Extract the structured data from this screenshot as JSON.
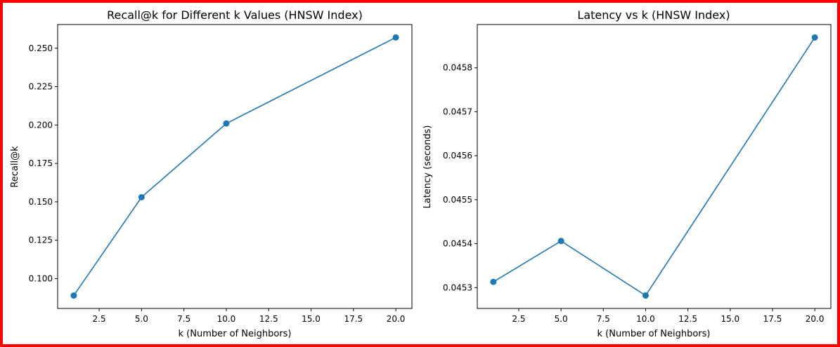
{
  "frame_color": "#ff0000",
  "chart_data": [
    {
      "type": "line",
      "title": "Recall@k for Different k Values (HNSW Index)",
      "xlabel": "k (Number of Neighbors)",
      "ylabel": "Recall@k",
      "x": [
        1,
        5,
        10,
        20
      ],
      "series": [
        {
          "values": [
            0.089,
            0.153,
            0.201,
            0.257
          ],
          "color": "#1f77b4",
          "marker": "circle"
        }
      ],
      "xlim": [
        0.05,
        20.95
      ],
      "ylim": [
        0.0806,
        0.2654
      ],
      "xticks": [
        2.5,
        5.0,
        7.5,
        10.0,
        12.5,
        15.0,
        17.5,
        20.0
      ],
      "xtick_labels": [
        "2.5",
        "5.0",
        "7.5",
        "10.0",
        "12.5",
        "15.0",
        "17.5",
        "20.0"
      ],
      "yticks": [
        0.1,
        0.125,
        0.15,
        0.175,
        0.2,
        0.225,
        0.25
      ],
      "ytick_labels": [
        "0.100",
        "0.125",
        "0.150",
        "0.175",
        "0.200",
        "0.225",
        "0.250"
      ],
      "grid": false,
      "legend": "none"
    },
    {
      "type": "line",
      "title": "Latency vs k (HNSW Index)",
      "xlabel": "k (Number of Neighbors)",
      "ylabel": "Latency (seconds)",
      "x": [
        1,
        5,
        10,
        20
      ],
      "series": [
        {
          "values": [
            0.045313,
            0.045406,
            0.045282,
            0.045869
          ],
          "color": "#1f77b4",
          "marker": "circle"
        }
      ],
      "xlim": [
        0.05,
        20.95
      ],
      "ylim": [
        0.0452526,
        0.0458984
      ],
      "xticks": [
        2.5,
        5.0,
        7.5,
        10.0,
        12.5,
        15.0,
        17.5,
        20.0
      ],
      "xtick_labels": [
        "2.5",
        "5.0",
        "7.5",
        "10.0",
        "12.5",
        "15.0",
        "17.5",
        "20.0"
      ],
      "yticks": [
        0.0453,
        0.0454,
        0.0455,
        0.0456,
        0.0457,
        0.0458
      ],
      "ytick_labels": [
        "0.0453",
        "0.0454",
        "0.0455",
        "0.0456",
        "0.0457",
        "0.0458"
      ],
      "grid": false,
      "legend": "none"
    }
  ]
}
